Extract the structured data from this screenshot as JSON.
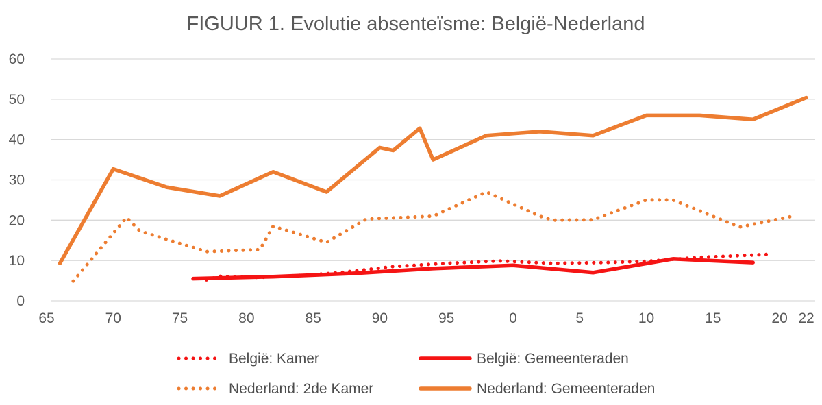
{
  "chart_data": {
    "type": "line",
    "title": "FIGUUR 1. Evolutie absenteïsme: België-Nederland",
    "xlabel": "",
    "ylabel": "",
    "grid": true,
    "legend_position": "bottom",
    "colors": {
      "red": "#f51414",
      "orange": "#ED7D31",
      "gridline": "#d9d9d9",
      "axis_text": "#595959",
      "title_text": "#595959"
    },
    "y_axis": {
      "min": 0,
      "max": 60,
      "step": 10,
      "ticks": [
        0,
        10,
        20,
        30,
        40,
        50,
        60
      ]
    },
    "x_axis": {
      "min_year": 1965,
      "max_year": 2022,
      "ticks": [
        {
          "label": "65",
          "year": 1965
        },
        {
          "label": "70",
          "year": 1970
        },
        {
          "label": "75",
          "year": 1975
        },
        {
          "label": "80",
          "year": 1980
        },
        {
          "label": "85",
          "year": 1985
        },
        {
          "label": "90",
          "year": 1990
        },
        {
          "label": "95",
          "year": 1995
        },
        {
          "label": "0",
          "year": 2000
        },
        {
          "label": "5",
          "year": 2005
        },
        {
          "label": "10",
          "year": 2010
        },
        {
          "label": "15",
          "year": 2015
        },
        {
          "label": "20",
          "year": 2020
        },
        {
          "label": "22",
          "year": 2022
        }
      ]
    },
    "series": [
      {
        "name": "België: Kamer",
        "color": "#f51414",
        "style": "dotted",
        "points": [
          [
            1977,
            5.2
          ],
          [
            1978,
            6.1
          ],
          [
            1981,
            5.8
          ],
          [
            1985,
            6.5
          ],
          [
            1987,
            7.0
          ],
          [
            1991,
            8.5
          ],
          [
            1995,
            9.3
          ],
          [
            1999,
            9.9
          ],
          [
            2003,
            9.3
          ],
          [
            2007,
            9.5
          ],
          [
            2010,
            9.8
          ],
          [
            2014,
            10.8
          ],
          [
            2019,
            11.5
          ]
        ]
      },
      {
        "name": "België: Gemeenteraden",
        "color": "#f51414",
        "style": "solid",
        "points": [
          [
            1976,
            5.5
          ],
          [
            1982,
            6.0
          ],
          [
            1988,
            6.8
          ],
          [
            1994,
            8.0
          ],
          [
            2000,
            8.8
          ],
          [
            2006,
            7.0
          ],
          [
            2012,
            10.4
          ],
          [
            2018,
            9.5
          ]
        ]
      },
      {
        "name": "Nederland: 2de Kamer",
        "color": "#ED7D31",
        "style": "dotted",
        "points": [
          [
            1967,
            4.9
          ],
          [
            1971,
            20.7
          ],
          [
            1972,
            17.3
          ],
          [
            1977,
            12.2
          ],
          [
            1981,
            12.7
          ],
          [
            1982,
            18.5
          ],
          [
            1986,
            14.5
          ],
          [
            1989,
            20.3
          ],
          [
            1994,
            21.0
          ],
          [
            1998,
            27.0
          ],
          [
            2002,
            21.0
          ],
          [
            2003,
            20.0
          ],
          [
            2006,
            20.1
          ],
          [
            2010,
            25.0
          ],
          [
            2012,
            25.0
          ],
          [
            2017,
            18.3
          ],
          [
            2021,
            21.0
          ]
        ]
      },
      {
        "name": "Nederland: Gemeenteraden",
        "color": "#ED7D31",
        "style": "solid",
        "points": [
          [
            1966,
            9.3
          ],
          [
            1970,
            32.7
          ],
          [
            1974,
            28.2
          ],
          [
            1978,
            26.0
          ],
          [
            1982,
            32.0
          ],
          [
            1986,
            27.0
          ],
          [
            1990,
            38.0
          ],
          [
            1991,
            37.3
          ],
          [
            1993,
            42.8
          ],
          [
            1994,
            35.0
          ],
          [
            1998,
            41.0
          ],
          [
            2002,
            42.0
          ],
          [
            2006,
            41.0
          ],
          [
            2010,
            46.0
          ],
          [
            2014,
            46.0
          ],
          [
            2018,
            45.0
          ],
          [
            2022,
            50.4
          ]
        ]
      }
    ]
  }
}
